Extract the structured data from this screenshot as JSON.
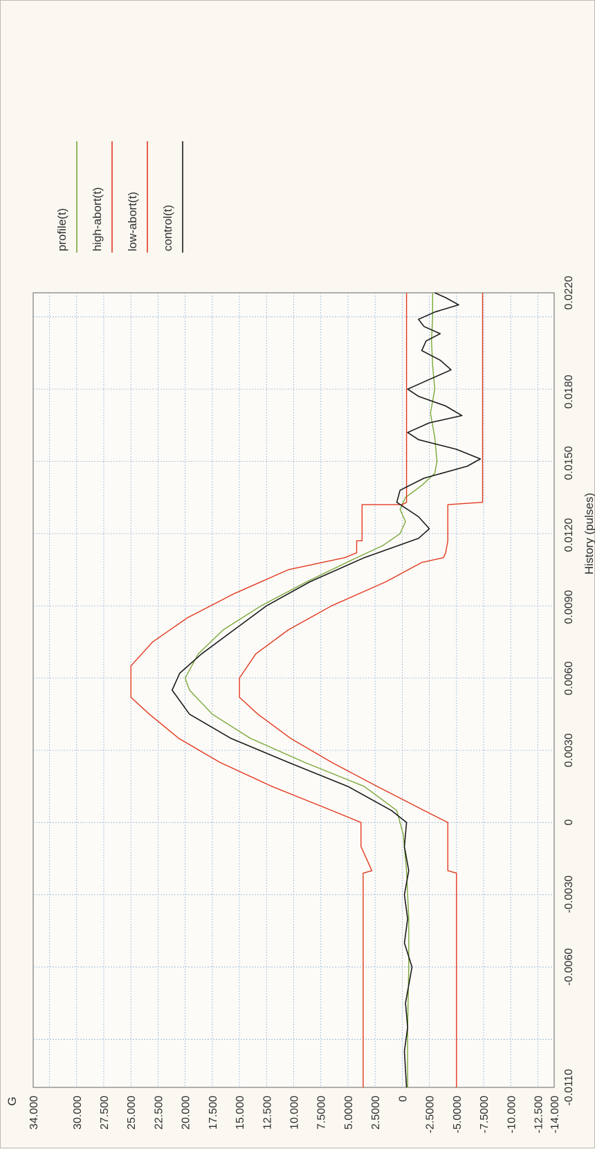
{
  "chart_data": {
    "type": "line",
    "orientation": "rotated-90-ccw",
    "xlabel": "History (pulses)",
    "ylabel": "G",
    "xlim": [
      -0.011,
      0.022
    ],
    "ylim": [
      -14.0,
      34.0
    ],
    "x_ticks": [
      "-0.0110",
      "-0.0060",
      "-0.0030",
      "0",
      "0.0030",
      "0.0060",
      "0.0090",
      "0.0120",
      "0.0150",
      "0.0180",
      "0.0220"
    ],
    "y_ticks": [
      "-14.000",
      "-12.500",
      "-10.000",
      "-7.5000",
      "-5.0000",
      "-2.5000",
      "0",
      "2.5000",
      "5.0000",
      "7.5000",
      "10.000",
      "12.500",
      "15.000",
      "17.500",
      "20.000",
      "22.500",
      "25.000",
      "27.500",
      "30.000",
      "34.000"
    ],
    "grid": true,
    "legend_position": "top-right",
    "series": [
      {
        "name": "profile(t)",
        "color": "#7aa83a",
        "points": [
          [
            -0.011,
            -0.5
          ],
          [
            -0.0085,
            -0.5
          ],
          [
            -0.006,
            -0.6
          ],
          [
            -0.004,
            -0.6
          ],
          [
            -0.002,
            -0.4
          ],
          [
            -0.0005,
            -0.1
          ],
          [
            0.0005,
            0.5
          ],
          [
            0.0015,
            3.5
          ],
          [
            0.0025,
            9.0
          ],
          [
            0.0035,
            14.0
          ],
          [
            0.0045,
            17.5
          ],
          [
            0.0055,
            19.6
          ],
          [
            0.006,
            20.0
          ],
          [
            0.007,
            18.8
          ],
          [
            0.008,
            16.5
          ],
          [
            0.009,
            13.0
          ],
          [
            0.01,
            8.8
          ],
          [
            0.011,
            4.2
          ],
          [
            0.0115,
            1.8
          ],
          [
            0.012,
            0.2
          ],
          [
            0.0125,
            -0.3
          ],
          [
            0.013,
            0.2
          ],
          [
            0.0135,
            -0.3
          ],
          [
            0.014,
            -1.8
          ],
          [
            0.0145,
            -3.0
          ],
          [
            0.015,
            -3.2
          ],
          [
            0.016,
            -3.0
          ],
          [
            0.017,
            -2.6
          ],
          [
            0.018,
            -3.0
          ],
          [
            0.019,
            -2.8
          ],
          [
            0.02,
            -2.7
          ],
          [
            0.021,
            -2.8
          ],
          [
            0.022,
            -2.8
          ]
        ]
      },
      {
        "name": "high-abort(t)",
        "color": "#e2391f",
        "points": [
          [
            -0.011,
            3.6
          ],
          [
            -0.0021,
            3.6
          ],
          [
            -0.002,
            2.8
          ],
          [
            -0.001,
            3.8
          ],
          [
            0.0,
            3.8
          ],
          [
            0.0005,
            6.5
          ],
          [
            0.0015,
            12.0
          ],
          [
            0.0025,
            16.8
          ],
          [
            0.0035,
            20.6
          ],
          [
            0.0045,
            23.3
          ],
          [
            0.0052,
            25.0
          ],
          [
            0.0065,
            25.0
          ],
          [
            0.0075,
            23.0
          ],
          [
            0.0085,
            19.8
          ],
          [
            0.0095,
            15.5
          ],
          [
            0.0105,
            10.5
          ],
          [
            0.011,
            5.3
          ],
          [
            0.0112,
            4.2
          ],
          [
            0.0117,
            4.2
          ],
          [
            0.0117,
            3.7
          ],
          [
            0.0132,
            3.7
          ],
          [
            0.0132,
            0.0
          ],
          [
            0.0133,
            -0.4
          ],
          [
            0.022,
            -0.4
          ]
        ]
      },
      {
        "name": "low-abort(t)",
        "color": "#e2391f",
        "points": [
          [
            -0.011,
            -5.0
          ],
          [
            -0.0021,
            -5.0
          ],
          [
            -0.002,
            -4.2
          ],
          [
            -0.001,
            -4.2
          ],
          [
            0.0,
            -4.2
          ],
          [
            0.0005,
            -2.0
          ],
          [
            0.0015,
            2.3
          ],
          [
            0.0025,
            6.5
          ],
          [
            0.0035,
            10.3
          ],
          [
            0.0045,
            13.3
          ],
          [
            0.0052,
            15.0
          ],
          [
            0.006,
            15.0
          ],
          [
            0.007,
            13.5
          ],
          [
            0.008,
            10.5
          ],
          [
            0.009,
            6.5
          ],
          [
            0.01,
            1.5
          ],
          [
            0.0108,
            -1.8
          ],
          [
            0.011,
            -3.8
          ],
          [
            0.0112,
            -4.0
          ],
          [
            0.0117,
            -4.2
          ],
          [
            0.0132,
            -4.2
          ],
          [
            0.0133,
            -7.4
          ],
          [
            0.022,
            -7.4
          ]
        ]
      },
      {
        "name": "control(t)",
        "color": "#1a1a1a",
        "points": [
          [
            -0.011,
            -0.4
          ],
          [
            -0.0095,
            -0.2
          ],
          [
            -0.0085,
            -0.5
          ],
          [
            -0.0075,
            -0.3
          ],
          [
            -0.006,
            -0.9
          ],
          [
            -0.005,
            -0.2
          ],
          [
            -0.004,
            -0.5
          ],
          [
            -0.003,
            -0.2
          ],
          [
            -0.002,
            -0.6
          ],
          [
            -0.001,
            -0.2
          ],
          [
            0.0,
            -0.4
          ],
          [
            0.0005,
            1.0
          ],
          [
            0.0015,
            5.0
          ],
          [
            0.0025,
            10.5
          ],
          [
            0.0035,
            15.8
          ],
          [
            0.0045,
            19.6
          ],
          [
            0.0055,
            21.2
          ],
          [
            0.0062,
            20.5
          ],
          [
            0.007,
            18.5
          ],
          [
            0.008,
            15.5
          ],
          [
            0.009,
            12.5
          ],
          [
            0.01,
            8.5
          ],
          [
            0.011,
            3.5
          ],
          [
            0.0118,
            -1.5
          ],
          [
            0.0122,
            -2.5
          ],
          [
            0.0127,
            -1.5
          ],
          [
            0.0133,
            0.5
          ],
          [
            0.0138,
            0.2
          ],
          [
            0.0143,
            -2.0
          ],
          [
            0.0148,
            -6.0
          ],
          [
            0.0151,
            -7.2
          ],
          [
            0.0155,
            -5.0
          ],
          [
            0.0159,
            -1.5
          ],
          [
            0.0162,
            -0.5
          ],
          [
            0.0166,
            -2.5
          ],
          [
            0.0169,
            -5.5
          ],
          [
            0.0173,
            -4.0
          ],
          [
            0.0177,
            -1.5
          ],
          [
            0.018,
            -0.5
          ],
          [
            0.0184,
            -2.5
          ],
          [
            0.0188,
            -4.5
          ],
          [
            0.0192,
            -3.5
          ],
          [
            0.0196,
            -1.8
          ],
          [
            0.02,
            -2.2
          ],
          [
            0.0203,
            -3.5
          ],
          [
            0.0206,
            -2.0
          ],
          [
            0.0209,
            -1.5
          ],
          [
            0.0212,
            -3.0
          ],
          [
            0.0215,
            -5.2
          ],
          [
            0.0218,
            -4.0
          ],
          [
            0.022,
            -3.0
          ]
        ]
      }
    ]
  }
}
